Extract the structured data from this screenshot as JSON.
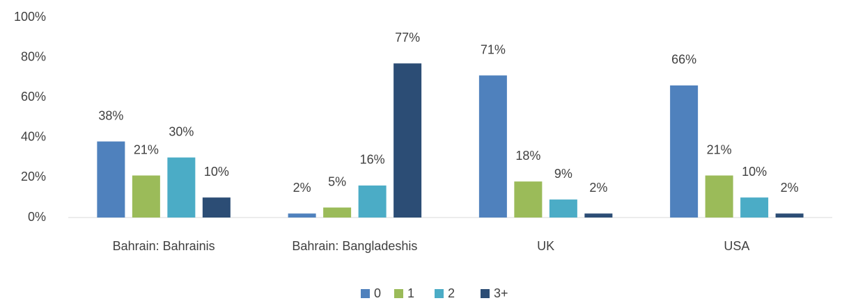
{
  "chart_data": {
    "type": "bar",
    "categories": [
      "Bahrain: Bahrainis",
      "Bahrain: Bangladeshis",
      "UK",
      "USA"
    ],
    "series": [
      {
        "name": "0",
        "color": "#4f81bd",
        "values": [
          38,
          2,
          71,
          66
        ],
        "value_labels": [
          "38%",
          "2%",
          "71%",
          "66%"
        ]
      },
      {
        "name": "1",
        "color": "#9bbb59",
        "values": [
          21,
          5,
          18,
          21
        ],
        "value_labels": [
          "21%",
          "5%",
          "18%",
          "21%"
        ]
      },
      {
        "name": "2",
        "color": "#4bacc6",
        "values": [
          30,
          16,
          9,
          10
        ],
        "value_labels": [
          "30%",
          "16%",
          "9%",
          "10%"
        ]
      },
      {
        "name": "3+",
        "color": "#2c4d75",
        "values": [
          10,
          77,
          2,
          2
        ],
        "value_labels": [
          "10%",
          "77%",
          "2%",
          "2%"
        ]
      }
    ],
    "ylim": [
      0,
      100
    ],
    "yticks": [
      {
        "value": 0,
        "label": "0%"
      },
      {
        "value": 20,
        "label": "20%"
      },
      {
        "value": 40,
        "label": "40%"
      },
      {
        "value": 60,
        "label": "60%"
      },
      {
        "value": 80,
        "label": "80%"
      },
      {
        "value": 100,
        "label": "100%"
      }
    ],
    "grid": false,
    "legend": "bottom"
  }
}
